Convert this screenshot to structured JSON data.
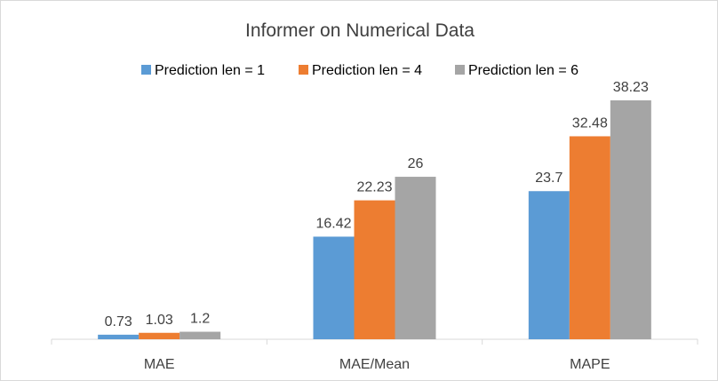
{
  "chart_data": {
    "type": "bar",
    "title": "Informer on Numerical Data",
    "categories": [
      "MAE",
      "MAE/Mean",
      "MAPE"
    ],
    "series": [
      {
        "name": "Prediction len = 1",
        "color": "#5b9bd5",
        "values": [
          0.73,
          16.42,
          23.7
        ]
      },
      {
        "name": "Prediction len = 4",
        "color": "#ed7d31",
        "values": [
          1.03,
          22.23,
          32.48
        ]
      },
      {
        "name": "Prediction len = 6",
        "color": "#a5a5a5",
        "values": [
          1.2,
          26,
          38.23
        ]
      }
    ],
    "xlabel": "",
    "ylabel": "",
    "ylim": [
      0,
      38.23
    ],
    "legend_position": "top",
    "grid": false,
    "data_labels": true
  }
}
